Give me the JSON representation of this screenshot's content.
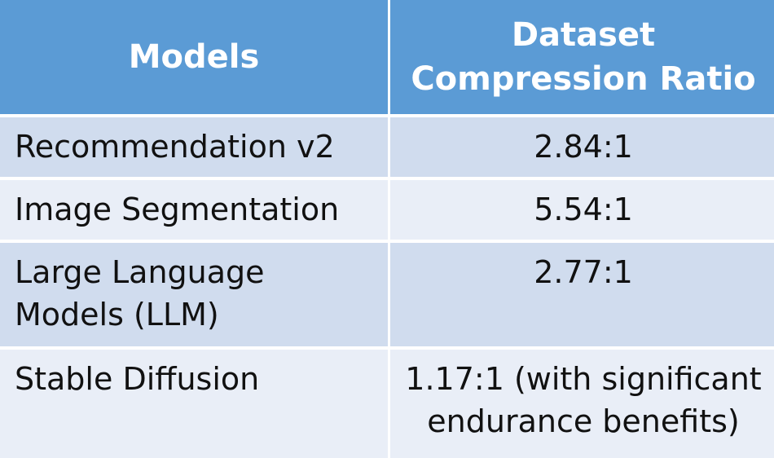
{
  "table": {
    "headers": {
      "models": "Models",
      "ratio": "Dataset Compression Ratio"
    },
    "rows": [
      {
        "model": "Recommendation v2",
        "ratio": "2.84:1"
      },
      {
        "model": "Image Segmentation",
        "ratio": "5.54:1"
      },
      {
        "model": "Large Language Models (LLM)",
        "ratio": "2.77:1"
      },
      {
        "model": "Stable Diffusion",
        "ratio": "1.17:1 (with significant endurance benefits)"
      }
    ]
  },
  "colors": {
    "header_bg": "#5b9bd5",
    "row_odd_bg": "#d0dcee",
    "row_even_bg": "#e9eef7",
    "header_text": "#ffffff"
  }
}
